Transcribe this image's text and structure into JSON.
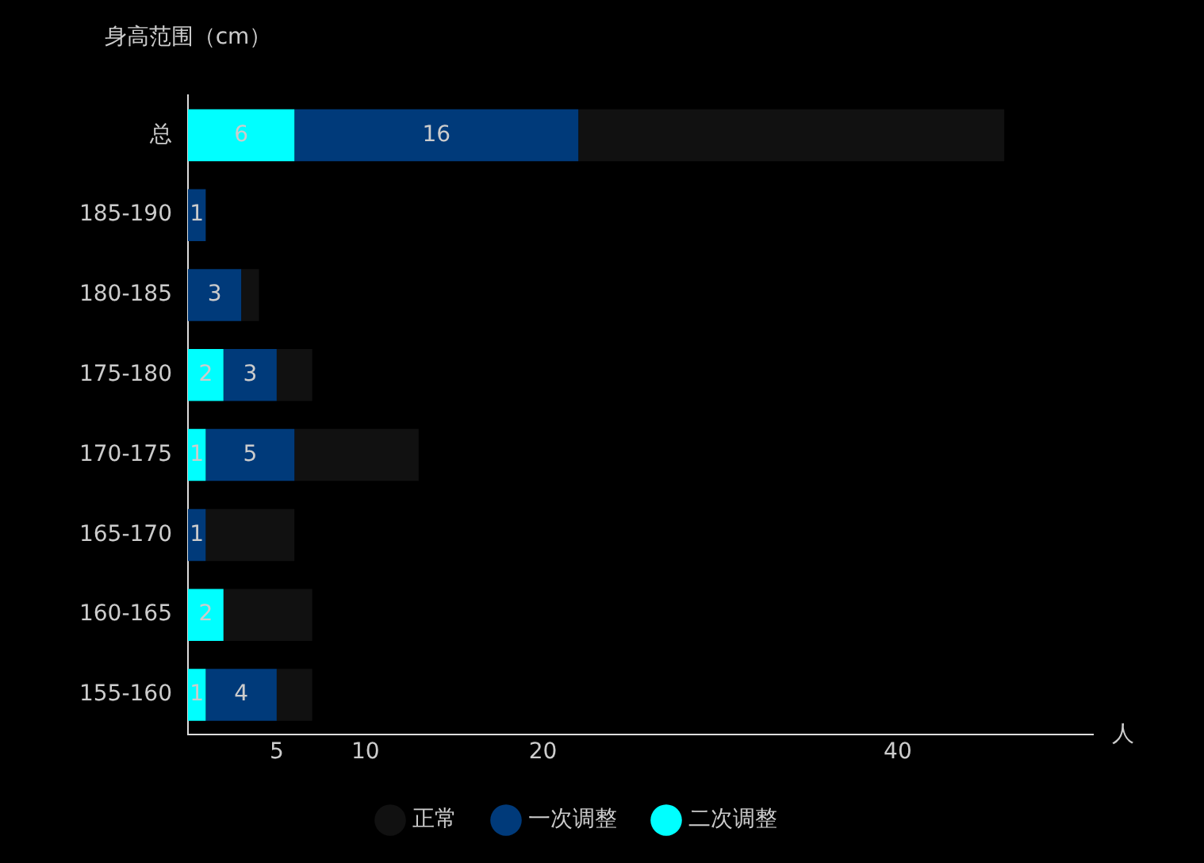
{
  "chart_data": {
    "type": "bar",
    "orientation": "horizontal",
    "stacked": true,
    "xlabel": "人",
    "ylabel": "身高范围（cm）",
    "categories": [
      "总",
      "185-190",
      "180-185",
      "175-180",
      "170-175",
      "165-170",
      "160-165",
      "155-160"
    ],
    "series": [
      {
        "name": "二次调整",
        "color": "#00ffff",
        "values": [
          6,
          null,
          null,
          2,
          1,
          null,
          2,
          1
        ],
        "value_labels": [
          "6",
          null,
          null,
          "2",
          "1",
          null,
          "2",
          "1"
        ]
      },
      {
        "name": "一次调整",
        "color": "#003a7a",
        "values": [
          16,
          1,
          3,
          3,
          5,
          1,
          null,
          4
        ],
        "value_labels": [
          "16",
          "1",
          "3",
          "3",
          "5",
          "1",
          null,
          "4"
        ]
      },
      {
        "name": "正常",
        "color": "#111111",
        "values": [
          24,
          null,
          1,
          2,
          7,
          5,
          5,
          2
        ]
      }
    ],
    "xlim": [
      0,
      51
    ],
    "xticks": [
      5,
      10,
      20,
      40
    ],
    "grid": false,
    "legend": "bottom"
  }
}
